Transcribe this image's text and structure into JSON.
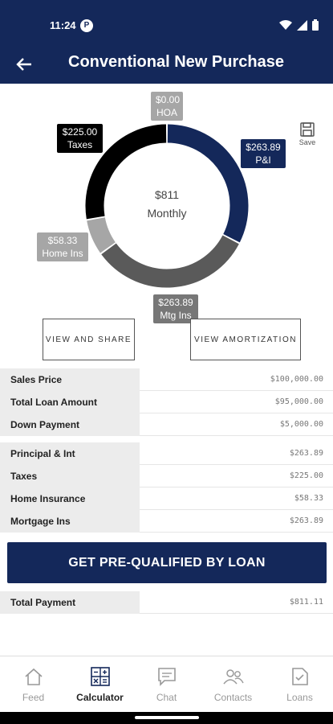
{
  "status_bar": {
    "time": "11:24",
    "app_icon_letter": "P"
  },
  "header": {
    "title": "Conventional New Purchase"
  },
  "chart": {
    "center_amount": "$811",
    "center_label": "Monthly",
    "segments": [
      {
        "key": "pi",
        "amount": "$263.89",
        "label": "P&I",
        "value": 263.89,
        "color": "#14285a"
      },
      {
        "key": "mtg",
        "amount": "$263.89",
        "label": "Mtg Ins",
        "value": 263.89,
        "color": "#5a5a5a"
      },
      {
        "key": "home",
        "amount": "$58.33",
        "label": "Home Ins",
        "value": 58.33,
        "color": "#a6a6a6"
      },
      {
        "key": "taxes",
        "amount": "$225.00",
        "label": "Taxes",
        "value": 225.0,
        "color": "#000000"
      },
      {
        "key": "hoa",
        "amount": "$0.00",
        "label": "HOA",
        "value": 0,
        "color": "#777777"
      }
    ]
  },
  "save_label": "Save",
  "actions": {
    "view_share": "VIEW AND SHARE",
    "view_amortization": "VIEW AMORTIZATION"
  },
  "loan_rows": [
    {
      "label": "Sales Price",
      "value": "$100,000.00"
    },
    {
      "label": "Total Loan Amount",
      "value": "$95,000.00"
    },
    {
      "label": "Down Payment",
      "value": "$5,000.00"
    }
  ],
  "payment_rows": [
    {
      "label": "Principal & Int",
      "value": "$263.89"
    },
    {
      "label": "Taxes",
      "value": "$225.00"
    },
    {
      "label": "Home Insurance",
      "value": "$58.33"
    },
    {
      "label": "Mortgage Ins",
      "value": "$263.89"
    }
  ],
  "cta_label": "GET PRE-QUALIFIED BY LOAN",
  "total_row": {
    "label": "Total Payment",
    "value": "$811.11"
  },
  "nav": [
    {
      "label": "Feed",
      "icon": "home-icon",
      "active": false
    },
    {
      "label": "Calculator",
      "icon": "calculator-icon",
      "active": true
    },
    {
      "label": "Chat",
      "icon": "chat-icon",
      "active": false
    },
    {
      "label": "Contacts",
      "icon": "contacts-icon",
      "active": false
    },
    {
      "label": "Loans",
      "icon": "loans-icon",
      "active": false
    }
  ]
}
